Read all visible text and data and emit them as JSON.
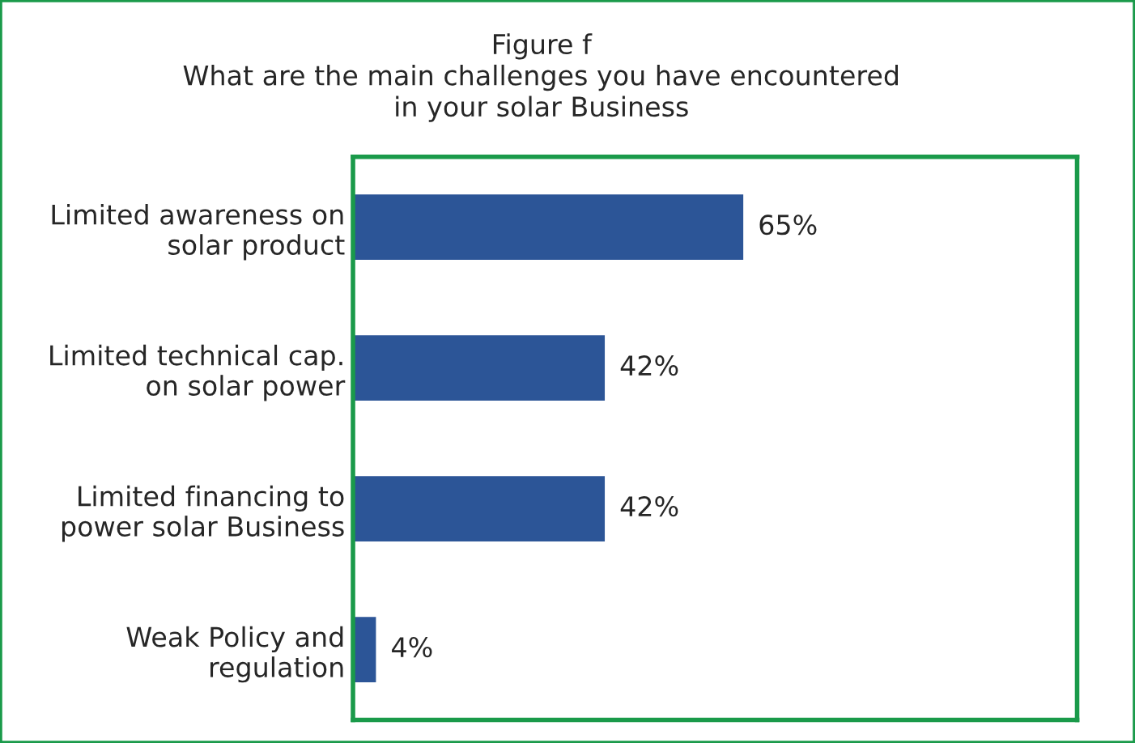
{
  "chart_data": {
    "type": "bar",
    "orientation": "horizontal",
    "title": "Figure f\nWhat are the main challenges you have encountered\nin your solar Business",
    "categories": [
      "Limited awareness on\nsolar product",
      "Limited technical cap.\non solar power",
      "Limited financing to\npower solar Business",
      "Weak Policy and\nregulation"
    ],
    "values": [
      65,
      42,
      42,
      4
    ],
    "value_labels": [
      "65%",
      "42%",
      "42%",
      "4%"
    ],
    "color": "#2c5597",
    "grid": false,
    "legend": false,
    "tick_labels": "y"
  }
}
